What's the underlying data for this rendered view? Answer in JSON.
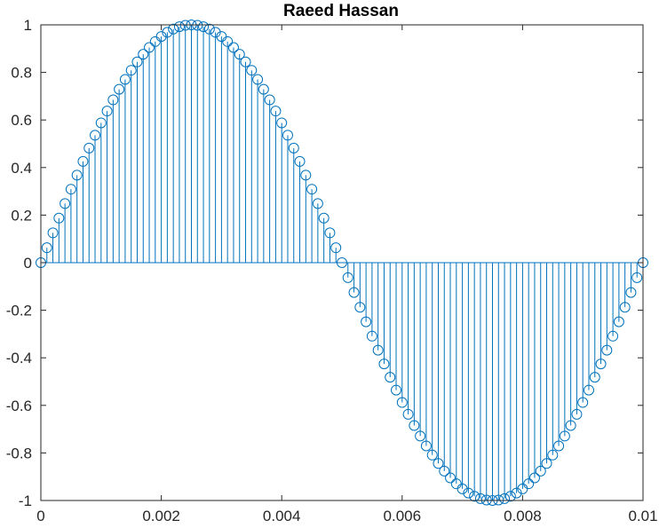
{
  "chart_data": {
    "type": "stem",
    "title": "Raeed Hassan",
    "xlabel": "",
    "ylabel": "",
    "xlim": [
      0,
      0.01
    ],
    "ylim": [
      -1,
      1
    ],
    "xticks": [
      0,
      0.002,
      0.004,
      0.006,
      0.008,
      0.01
    ],
    "xtick_labels": [
      "0",
      "0.002",
      "0.004",
      "0.006",
      "0.008",
      "0.01"
    ],
    "yticks": [
      -1,
      -0.8,
      -0.6,
      -0.4,
      -0.2,
      0,
      0.2,
      0.4,
      0.6,
      0.8,
      1
    ],
    "ytick_labels": [
      "-1",
      "-0.8",
      "-0.6",
      "-0.4",
      "-0.2",
      "0",
      "0.2",
      "0.4",
      "0.6",
      "0.8",
      "1"
    ],
    "grid": false,
    "series_color": "#0072bd",
    "series": [
      {
        "x": [
          0,
          0.0001,
          0.0002,
          0.0003,
          0.0004,
          0.0005,
          0.0006,
          0.0007,
          0.0008,
          0.0009,
          0.001,
          0.0011,
          0.0012,
          0.0013,
          0.0014,
          0.0015,
          0.0016,
          0.0017,
          0.0018,
          0.0019,
          0.002,
          0.0021,
          0.0022,
          0.0023,
          0.0024,
          0.0025,
          0.0026,
          0.0027,
          0.0028,
          0.0029,
          0.003,
          0.0031,
          0.0032,
          0.0033,
          0.0034,
          0.0035,
          0.0036,
          0.0037,
          0.0038,
          0.0039,
          0.004,
          0.0041,
          0.0042,
          0.0043,
          0.0044,
          0.0045,
          0.0046,
          0.0047,
          0.0048,
          0.0049,
          0.005,
          0.0051,
          0.0052,
          0.0053,
          0.0054,
          0.0055,
          0.0056,
          0.0057,
          0.0058,
          0.0059,
          0.006,
          0.0061,
          0.0062,
          0.0063,
          0.0064,
          0.0065,
          0.0066,
          0.0067,
          0.0068,
          0.0069,
          0.007,
          0.0071,
          0.0072,
          0.0073,
          0.0074,
          0.0075,
          0.0076,
          0.0077,
          0.0078,
          0.0079,
          0.008,
          0.0081,
          0.0082,
          0.0083,
          0.0084,
          0.0085,
          0.0086,
          0.0087,
          0.0088,
          0.0089,
          0.009,
          0.0091,
          0.0092,
          0.0093,
          0.0094,
          0.0095,
          0.0096,
          0.0097,
          0.0098,
          0.0099,
          0.01
        ],
        "y": [
          0,
          0.0628,
          0.1253,
          0.1874,
          0.2487,
          0.309,
          0.3681,
          0.4258,
          0.4818,
          0.5358,
          0.5878,
          0.6374,
          0.6845,
          0.729,
          0.7705,
          0.809,
          0.8443,
          0.8763,
          0.9048,
          0.9298,
          0.9511,
          0.9686,
          0.9823,
          0.9921,
          0.998,
          1,
          0.998,
          0.9921,
          0.9823,
          0.9686,
          0.9511,
          0.9298,
          0.9048,
          0.8763,
          0.8443,
          0.809,
          0.7705,
          0.729,
          0.6845,
          0.6374,
          0.5878,
          0.5358,
          0.4818,
          0.4258,
          0.3681,
          0.309,
          0.2487,
          0.1874,
          0.1253,
          0.0628,
          0,
          -0.0628,
          -0.1253,
          -0.1874,
          -0.2487,
          -0.309,
          -0.3681,
          -0.4258,
          -0.4818,
          -0.5358,
          -0.5878,
          -0.6374,
          -0.6845,
          -0.729,
          -0.7705,
          -0.809,
          -0.8443,
          -0.8763,
          -0.9048,
          -0.9298,
          -0.9511,
          -0.9686,
          -0.9823,
          -0.9921,
          -0.998,
          -1,
          -0.998,
          -0.9921,
          -0.9823,
          -0.9686,
          -0.9511,
          -0.9298,
          -0.9048,
          -0.8763,
          -0.8443,
          -0.809,
          -0.7705,
          -0.729,
          -0.6845,
          -0.6374,
          -0.5878,
          -0.5358,
          -0.4818,
          -0.4258,
          -0.3681,
          -0.309,
          -0.2487,
          -0.1874,
          -0.1253,
          -0.0628,
          0
        ]
      }
    ]
  }
}
